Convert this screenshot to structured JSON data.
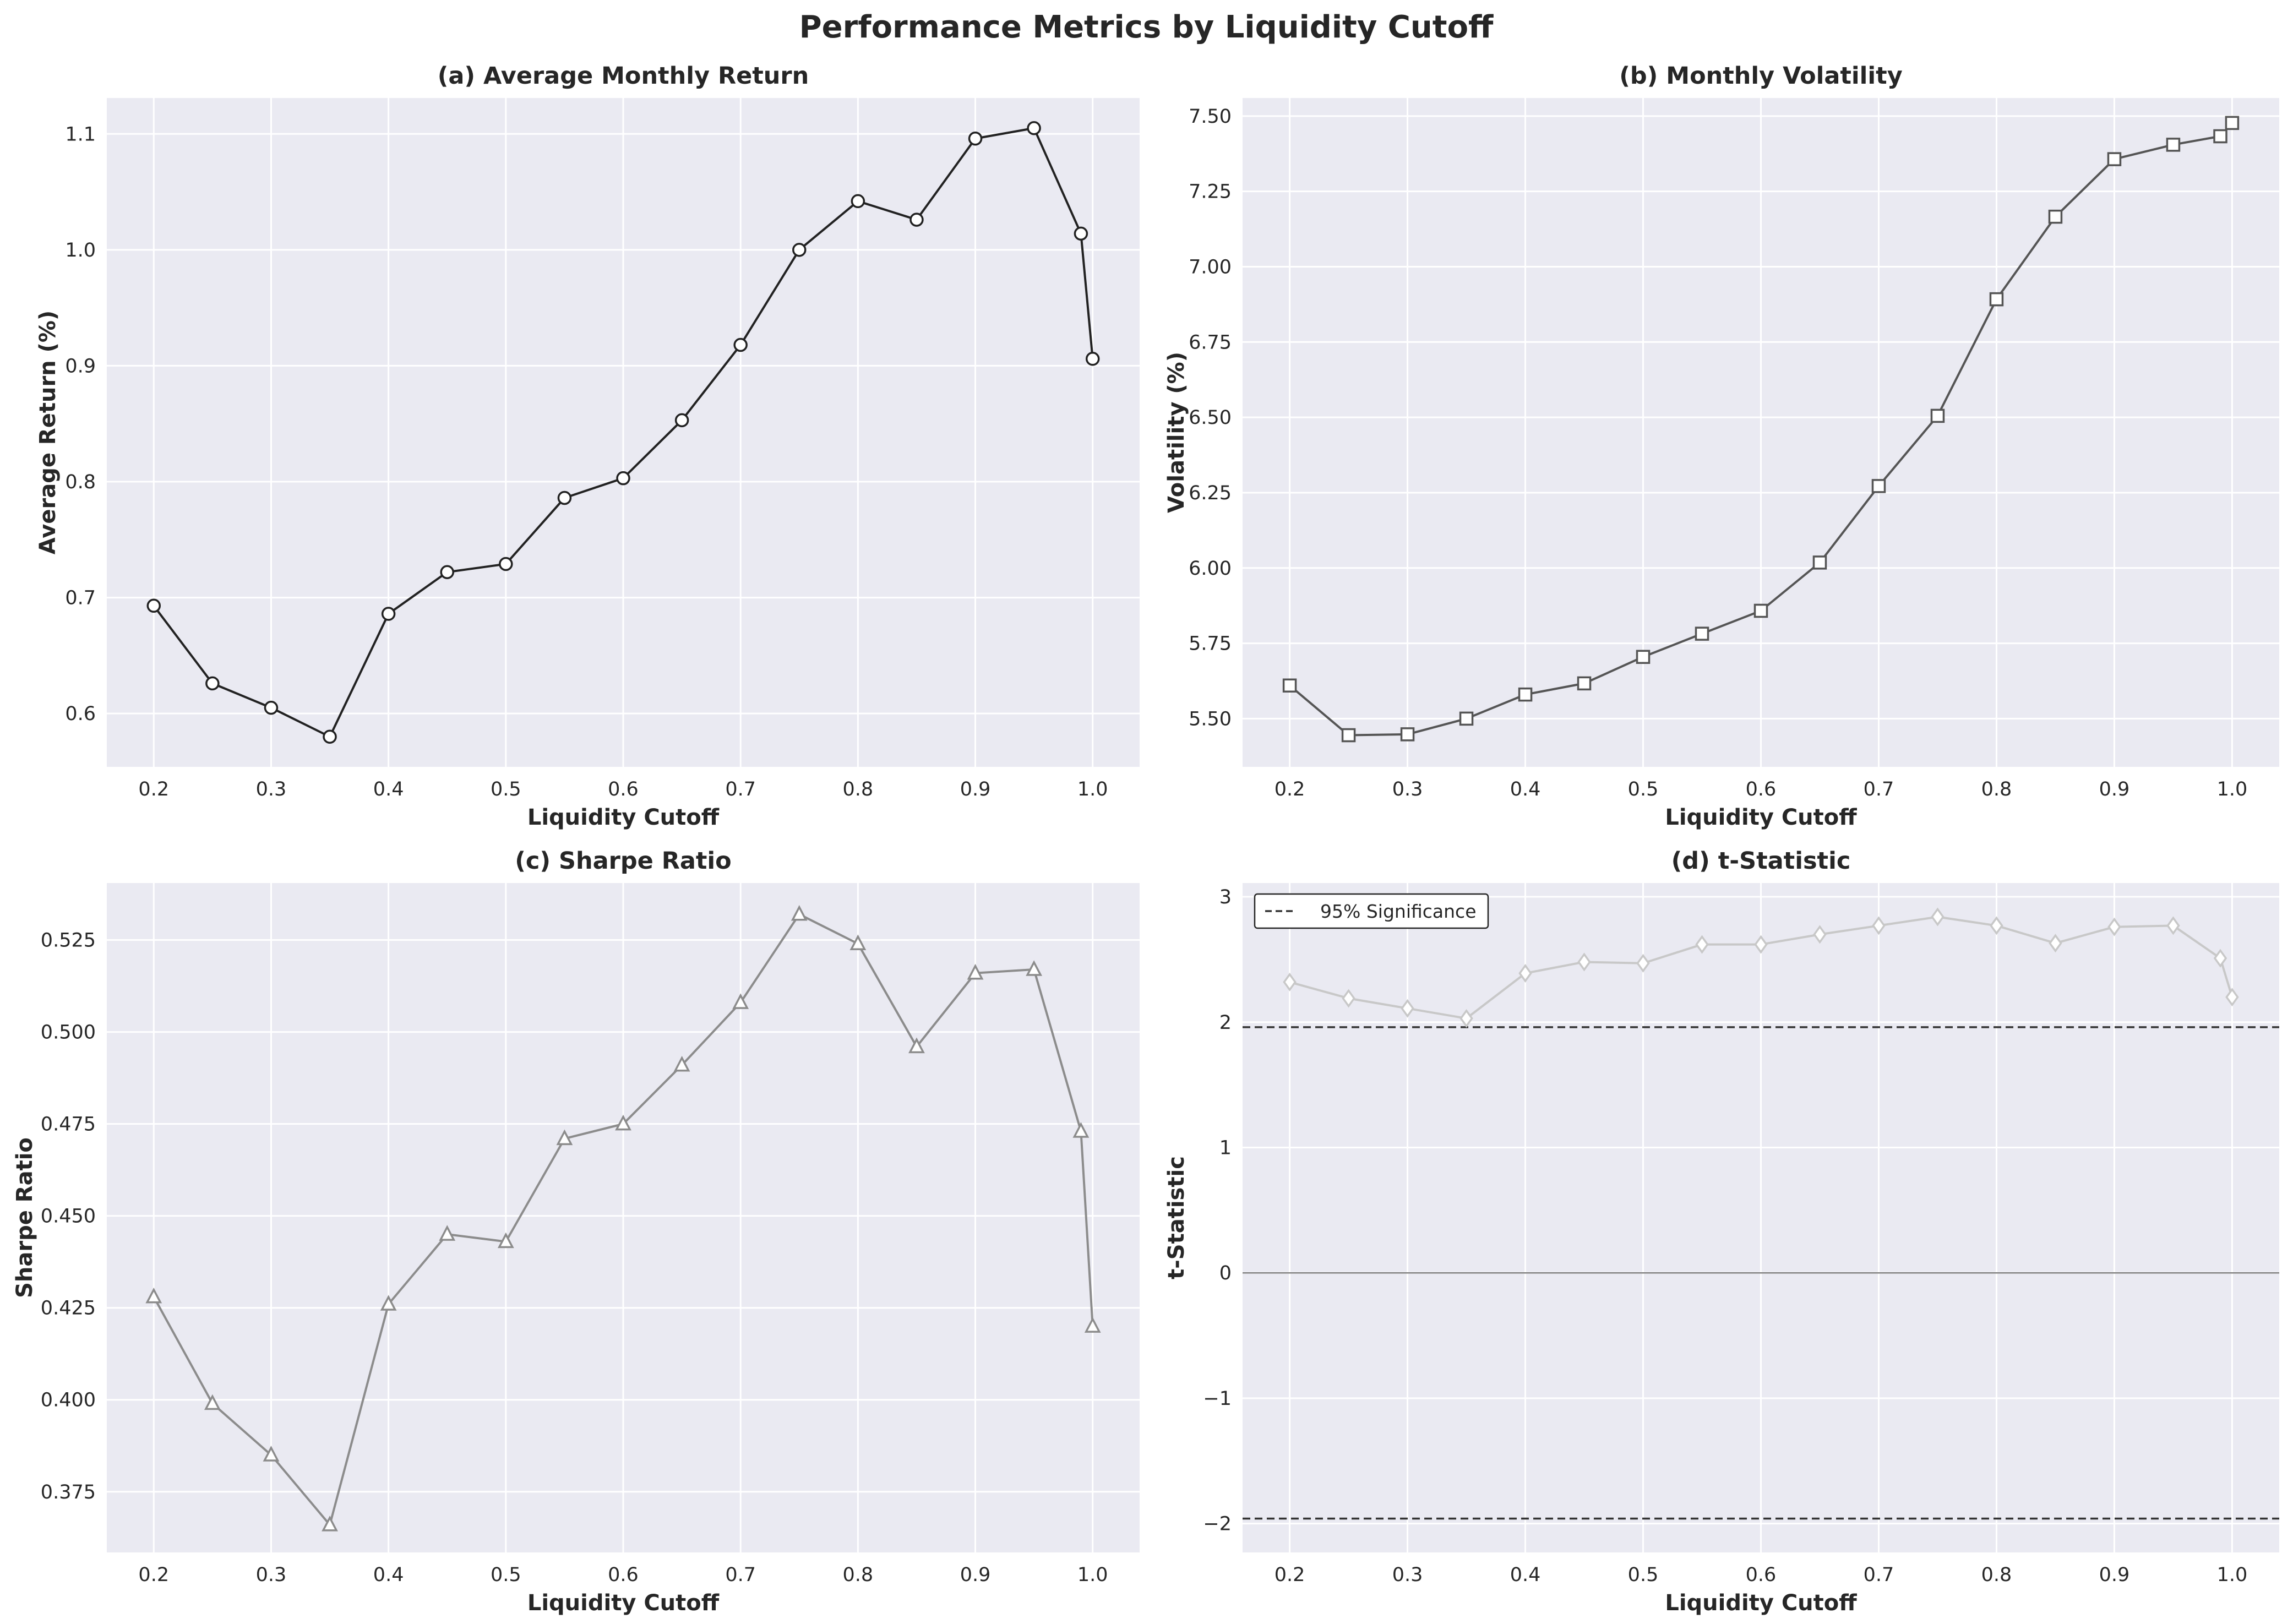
{
  "figure_title": "Performance Metrics by Liquidity Cutoff",
  "chart_data": [
    {
      "type": "line",
      "title": "(a) Average Monthly Return",
      "xlabel": "Liquidity Cutoff",
      "ylabel": "Average Return (%)",
      "x": [
        0.2,
        0.25,
        0.3,
        0.35,
        0.4,
        0.45,
        0.5,
        0.55,
        0.6,
        0.65,
        0.7,
        0.75,
        0.8,
        0.85,
        0.9,
        0.95,
        0.99,
        1.0
      ],
      "series": [
        {
          "values": [
            0.693,
            0.626,
            0.605,
            0.58,
            0.686,
            0.722,
            0.729,
            0.786,
            0.803,
            0.853,
            0.918,
            1.0,
            1.042,
            1.026,
            1.096,
            1.105,
            1.014,
            0.906
          ],
          "color": "#222222",
          "marker": "circle"
        }
      ],
      "xlim": [
        0.16,
        1.04
      ],
      "ylim": [
        0.554,
        1.131
      ],
      "xticks": [
        0.2,
        0.3,
        0.4,
        0.5,
        0.6,
        0.7,
        0.8,
        0.9,
        1.0
      ],
      "xtick_labels": [
        "0.2",
        "0.3",
        "0.4",
        "0.5",
        "0.6",
        "0.7",
        "0.8",
        "0.9",
        "1.0"
      ],
      "yticks": [
        0.6,
        0.7,
        0.8,
        0.9,
        1.0,
        1.1
      ],
      "ytick_labels": [
        "0.6",
        "0.7",
        "0.8",
        "0.9",
        "1.0",
        "1.1"
      ],
      "grid": true
    },
    {
      "type": "line",
      "title": "(b) Monthly Volatility",
      "xlabel": "Liquidity Cutoff",
      "ylabel": "Volatility (%)",
      "x": [
        0.2,
        0.25,
        0.3,
        0.35,
        0.4,
        0.45,
        0.5,
        0.55,
        0.6,
        0.65,
        0.7,
        0.75,
        0.8,
        0.85,
        0.9,
        0.95,
        0.99,
        1.0
      ],
      "series": [
        {
          "values": [
            5.61,
            5.445,
            5.448,
            5.5,
            5.58,
            5.617,
            5.705,
            5.782,
            5.858,
            6.018,
            6.272,
            6.505,
            6.892,
            7.166,
            7.357,
            7.405,
            7.433,
            7.477
          ],
          "color": "#555555",
          "marker": "square"
        }
      ],
      "xlim": [
        0.16,
        1.04
      ],
      "ylim": [
        5.34,
        7.56
      ],
      "xticks": [
        0.2,
        0.3,
        0.4,
        0.5,
        0.6,
        0.7,
        0.8,
        0.9,
        1.0
      ],
      "xtick_labels": [
        "0.2",
        "0.3",
        "0.4",
        "0.5",
        "0.6",
        "0.7",
        "0.8",
        "0.9",
        "1.0"
      ],
      "yticks": [
        5.5,
        5.75,
        6.0,
        6.25,
        6.5,
        6.75,
        7.0,
        7.25,
        7.5
      ],
      "ytick_labels": [
        "5.50",
        "5.75",
        "6.00",
        "6.25",
        "6.50",
        "6.75",
        "7.00",
        "7.25",
        "7.50"
      ],
      "grid": true
    },
    {
      "type": "line",
      "title": "(c) Sharpe Ratio",
      "xlabel": "Liquidity Cutoff",
      "ylabel": "Sharpe Ratio",
      "x": [
        0.2,
        0.25,
        0.3,
        0.35,
        0.4,
        0.45,
        0.5,
        0.55,
        0.6,
        0.65,
        0.7,
        0.75,
        0.8,
        0.85,
        0.9,
        0.95,
        0.99,
        1.0
      ],
      "series": [
        {
          "values": [
            0.428,
            0.399,
            0.385,
            0.366,
            0.426,
            0.445,
            0.443,
            0.471,
            0.475,
            0.491,
            0.508,
            0.532,
            0.524,
            0.496,
            0.516,
            0.517,
            0.473,
            0.42
          ],
          "color": "#8c8c8c",
          "marker": "triangle"
        }
      ],
      "xlim": [
        0.16,
        1.04
      ],
      "ylim": [
        0.3585,
        0.5405
      ],
      "xticks": [
        0.2,
        0.3,
        0.4,
        0.5,
        0.6,
        0.7,
        0.8,
        0.9,
        1.0
      ],
      "xtick_labels": [
        "0.2",
        "0.3",
        "0.4",
        "0.5",
        "0.6",
        "0.7",
        "0.8",
        "0.9",
        "1.0"
      ],
      "yticks": [
        0.375,
        0.4,
        0.425,
        0.45,
        0.475,
        0.5,
        0.525
      ],
      "ytick_labels": [
        "0.375",
        "0.400",
        "0.425",
        "0.450",
        "0.475",
        "0.500",
        "0.525"
      ],
      "grid": true
    },
    {
      "type": "line",
      "title": "(d) t-Statistic",
      "xlabel": "Liquidity Cutoff",
      "ylabel": "t-Statistic",
      "x": [
        0.2,
        0.25,
        0.3,
        0.35,
        0.4,
        0.45,
        0.5,
        0.55,
        0.6,
        0.65,
        0.7,
        0.75,
        0.8,
        0.85,
        0.9,
        0.95,
        0.99,
        1.0
      ],
      "series": [
        {
          "values": [
            2.32,
            2.19,
            2.11,
            2.03,
            2.39,
            2.48,
            2.47,
            2.62,
            2.62,
            2.7,
            2.77,
            2.84,
            2.77,
            2.63,
            2.76,
            2.77,
            2.51,
            2.2
          ],
          "color": "#c8c8c8",
          "marker": "diamond"
        }
      ],
      "reference_lines": [
        {
          "y": 1.96,
          "style": "dashed",
          "color": "#333333",
          "label": "95% Significance"
        },
        {
          "y": -1.96,
          "style": "dashed",
          "color": "#333333"
        },
        {
          "y": 0,
          "style": "solid",
          "color": "#808080"
        }
      ],
      "legend": {
        "position": "top-left",
        "entries": [
          "95% Significance"
        ]
      },
      "xlim": [
        0.16,
        1.04
      ],
      "ylim": [
        -2.23,
        3.11
      ],
      "xticks": [
        0.2,
        0.3,
        0.4,
        0.5,
        0.6,
        0.7,
        0.8,
        0.9,
        1.0
      ],
      "xtick_labels": [
        "0.2",
        "0.3",
        "0.4",
        "0.5",
        "0.6",
        "0.7",
        "0.8",
        "0.9",
        "1.0"
      ],
      "yticks": [
        -2,
        -1,
        0,
        1,
        2,
        3
      ],
      "ytick_labels": [
        "−2",
        "−1",
        "0",
        "1",
        "2",
        "3"
      ],
      "grid": true
    }
  ]
}
